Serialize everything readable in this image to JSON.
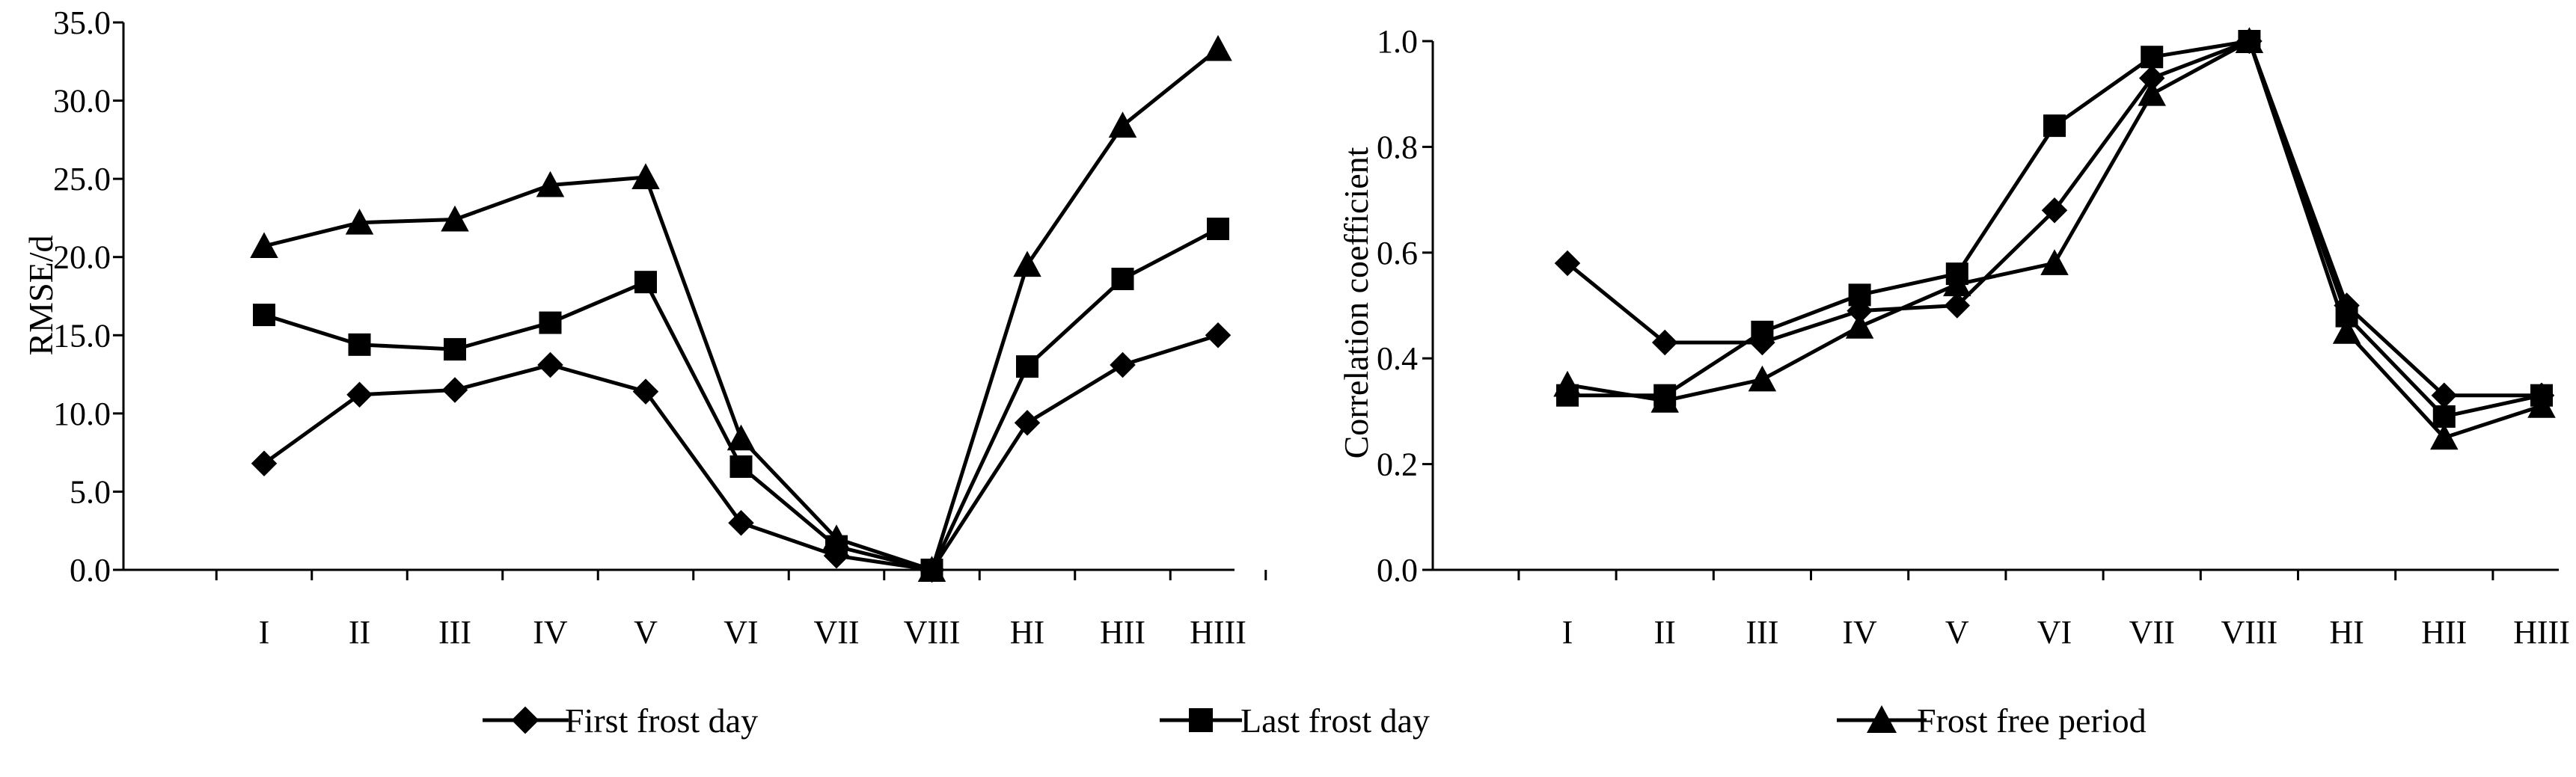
{
  "chart_data": [
    {
      "type": "line",
      "categories": [
        "I",
        "II",
        "III",
        "IV",
        "V",
        "VI",
        "VII",
        "VIII",
        "HI",
        "HII",
        "HIII"
      ],
      "ylabel": "RMSE/d",
      "ylim": [
        0,
        35
      ],
      "yticks": [
        "0.0",
        "5.0",
        "10.0",
        "15.0",
        "20.0",
        "25.0",
        "30.0",
        "35.0"
      ],
      "series": [
        {
          "name": "First frost day",
          "marker": "diamond",
          "values": [
            6.8,
            11.2,
            11.5,
            13.1,
            11.4,
            3.0,
            0.9,
            0.0,
            9.4,
            13.1,
            15.0
          ]
        },
        {
          "name": "Last frost day",
          "marker": "square",
          "values": [
            16.3,
            14.4,
            14.1,
            15.8,
            18.4,
            6.6,
            1.5,
            0.0,
            13.0,
            18.6,
            21.8
          ]
        },
        {
          "name": "Frost free period",
          "marker": "triangle",
          "values": [
            20.7,
            22.2,
            22.4,
            24.6,
            25.1,
            8.4,
            2.0,
            0.0,
            19.5,
            28.4,
            33.3
          ]
        }
      ]
    },
    {
      "type": "line",
      "categories": [
        "I",
        "II",
        "III",
        "IV",
        "V",
        "VI",
        "VII",
        "VIII",
        "HI",
        "HII",
        "HIII"
      ],
      "ylabel": "Correlation coefficient",
      "ylim": [
        0,
        1
      ],
      "yticks": [
        "0.0",
        "0.2",
        "0.4",
        "0.6",
        "0.8",
        "1.0"
      ],
      "series": [
        {
          "name": "First frost day",
          "marker": "diamond",
          "values": [
            0.58,
            0.43,
            0.43,
            0.49,
            0.5,
            0.68,
            0.93,
            1.0,
            0.5,
            0.33,
            0.33
          ]
        },
        {
          "name": "Last frost day",
          "marker": "square",
          "values": [
            0.33,
            0.33,
            0.45,
            0.52,
            0.56,
            0.84,
            0.97,
            1.0,
            0.48,
            0.29,
            0.33
          ]
        },
        {
          "name": "Frost free period",
          "marker": "triangle",
          "values": [
            0.35,
            0.32,
            0.36,
            0.46,
            0.54,
            0.58,
            0.9,
            1.0,
            0.45,
            0.25,
            0.31
          ]
        }
      ]
    }
  ],
  "legend": {
    "placement": "bottom",
    "entries": [
      {
        "name": "First frost day",
        "marker": "diamond"
      },
      {
        "name": "Last frost day",
        "marker": "square"
      },
      {
        "name": "Frost free period",
        "marker": "triangle"
      }
    ]
  }
}
